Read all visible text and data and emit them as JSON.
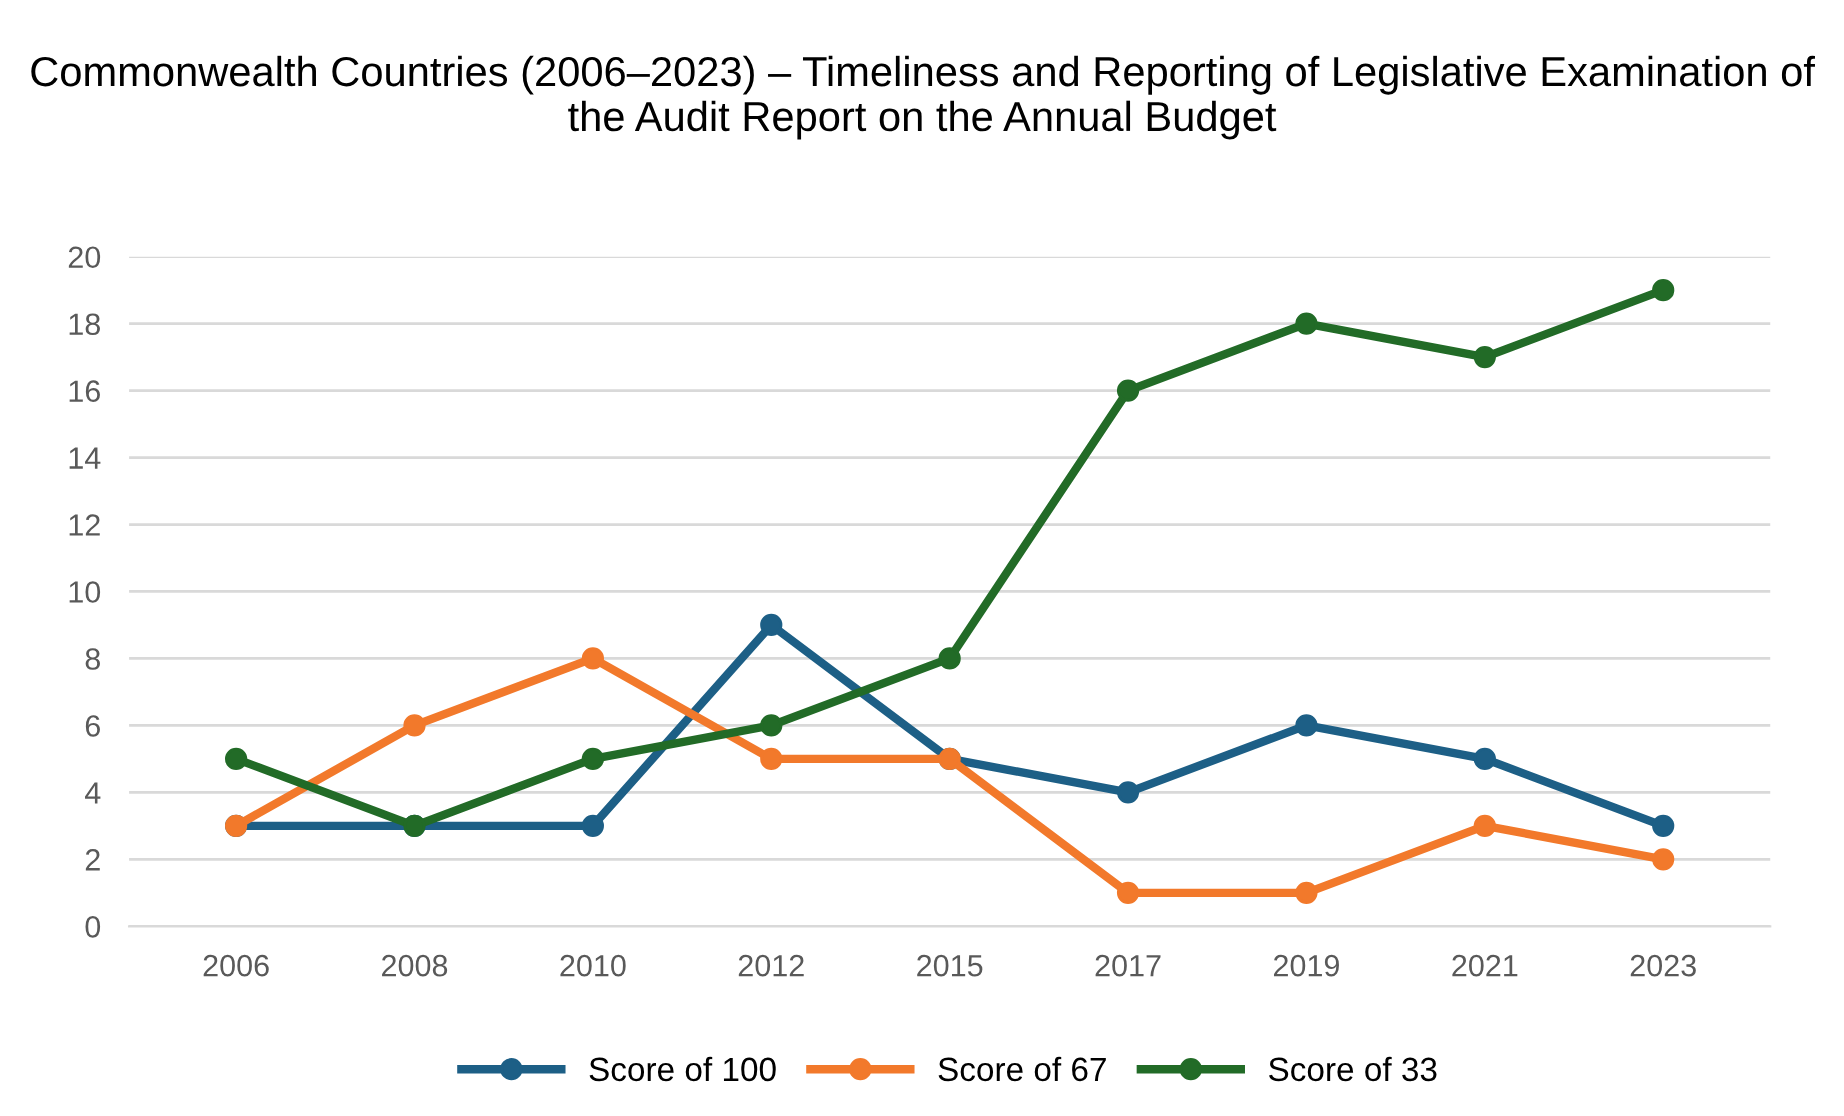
{
  "chart_data": {
    "type": "line",
    "title": "Commonwealth Countries (2006–2023) – Timeliness and Reporting of Legislative Examination of the Audit Report on the Annual Budget",
    "categories": [
      "2006",
      "2008",
      "2010",
      "2012",
      "2015",
      "2017",
      "2019",
      "2021",
      "2023"
    ],
    "series": [
      {
        "name": "Score of 100",
        "color": "#1d5f86",
        "values": [
          3,
          3,
          3,
          9,
          5,
          4,
          6,
          5,
          3
        ]
      },
      {
        "name": "Score of 67",
        "color": "#f2792b",
        "values": [
          3,
          6,
          8,
          5,
          5,
          1,
          1,
          3,
          2
        ]
      },
      {
        "name": "Score of 33",
        "color": "#226b27",
        "values": [
          5,
          3,
          5,
          6,
          8,
          16,
          18,
          17,
          19
        ]
      }
    ],
    "ylim": [
      0,
      20
    ],
    "yticks": [
      0,
      2,
      4,
      6,
      8,
      10,
      12,
      14,
      16,
      18,
      20
    ],
    "grid": "y",
    "legend": "bottom",
    "marker": "circle",
    "line_style": "solid"
  }
}
